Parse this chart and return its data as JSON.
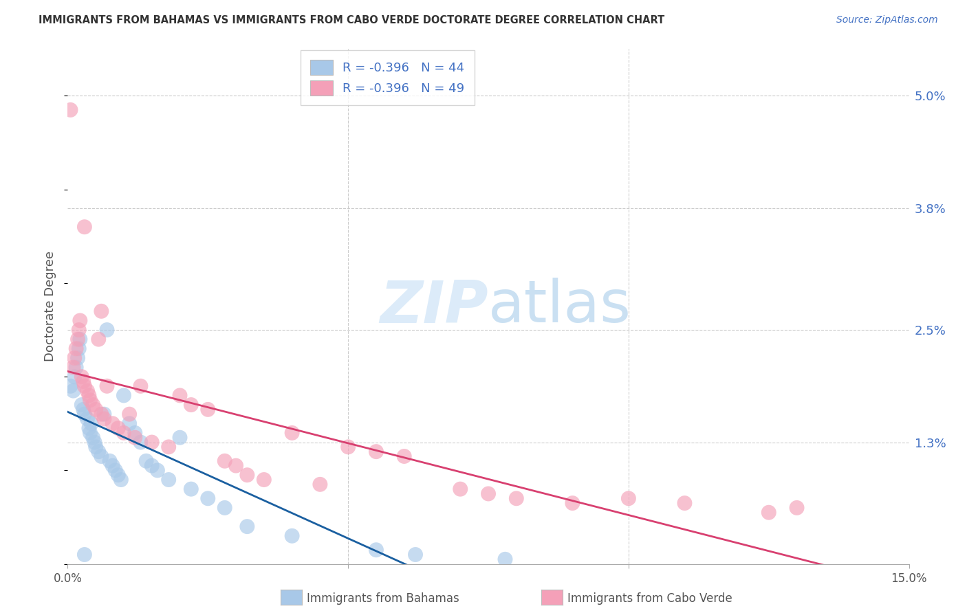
{
  "title": "IMMIGRANTS FROM BAHAMAS VS IMMIGRANTS FROM CABO VERDE DOCTORATE DEGREE CORRELATION CHART",
  "source": "Source: ZipAtlas.com",
  "ylabel": "Doctorate Degree",
  "xlim": [
    0.0,
    15.0
  ],
  "ylim": [
    0.0,
    5.5
  ],
  "yticks": [
    1.3,
    2.5,
    3.8,
    5.0
  ],
  "ytick_labels": [
    "1.3%",
    "2.5%",
    "3.8%",
    "5.0%"
  ],
  "color_bahamas": "#a8c8e8",
  "color_caboverde": "#f4a0b8",
  "line_color_bahamas": "#1a5fa0",
  "line_color_caboverde": "#d84070",
  "legend_bahamas": "R = -0.396   N = 44",
  "legend_caboverde": "R = -0.396   N = 49",
  "bottom_label_bahamas": "Immigrants from Bahamas",
  "bottom_label_caboverde": "Immigrants from Cabo Verde",
  "bahamas_x": [
    0.05,
    0.1,
    0.12,
    0.15,
    0.18,
    0.2,
    0.22,
    0.25,
    0.28,
    0.3,
    0.35,
    0.38,
    0.4,
    0.42,
    0.45,
    0.48,
    0.5,
    0.55,
    0.6,
    0.65,
    0.7,
    0.75,
    0.8,
    0.85,
    0.9,
    0.95,
    1.0,
    1.1,
    1.2,
    1.3,
    1.4,
    1.5,
    1.6,
    1.8,
    2.0,
    2.2,
    2.5,
    2.8,
    3.2,
    4.0,
    5.5,
    6.2,
    7.8,
    0.3
  ],
  "bahamas_y": [
    1.9,
    1.85,
    2.0,
    2.1,
    2.2,
    2.3,
    2.4,
    1.7,
    1.65,
    1.6,
    1.55,
    1.45,
    1.4,
    1.5,
    1.35,
    1.3,
    1.25,
    1.2,
    1.15,
    1.6,
    2.5,
    1.1,
    1.05,
    1.0,
    0.95,
    0.9,
    1.8,
    1.5,
    1.4,
    1.3,
    1.1,
    1.05,
    1.0,
    0.9,
    1.35,
    0.8,
    0.7,
    0.6,
    0.4,
    0.3,
    0.15,
    0.1,
    0.05,
    0.1
  ],
  "caboverde_x": [
    0.05,
    0.1,
    0.12,
    0.15,
    0.18,
    0.2,
    0.22,
    0.25,
    0.28,
    0.3,
    0.35,
    0.38,
    0.4,
    0.45,
    0.5,
    0.55,
    0.6,
    0.65,
    0.7,
    0.8,
    0.9,
    1.0,
    1.2,
    1.3,
    1.5,
    1.8,
    2.0,
    2.2,
    2.5,
    2.8,
    3.0,
    3.2,
    3.5,
    4.0,
    4.5,
    5.0,
    5.5,
    6.0,
    7.0,
    7.5,
    8.0,
    9.0,
    10.0,
    11.0,
    12.5,
    13.0,
    0.3,
    0.6,
    1.1
  ],
  "caboverde_y": [
    4.85,
    2.1,
    2.2,
    2.3,
    2.4,
    2.5,
    2.6,
    2.0,
    1.95,
    1.9,
    1.85,
    1.8,
    1.75,
    1.7,
    1.65,
    2.4,
    1.6,
    1.55,
    1.9,
    1.5,
    1.45,
    1.4,
    1.35,
    1.9,
    1.3,
    1.25,
    1.8,
    1.7,
    1.65,
    1.1,
    1.05,
    0.95,
    0.9,
    1.4,
    0.85,
    1.25,
    1.2,
    1.15,
    0.8,
    0.75,
    0.7,
    0.65,
    0.7,
    0.65,
    0.55,
    0.6,
    3.6,
    2.7,
    1.6
  ]
}
